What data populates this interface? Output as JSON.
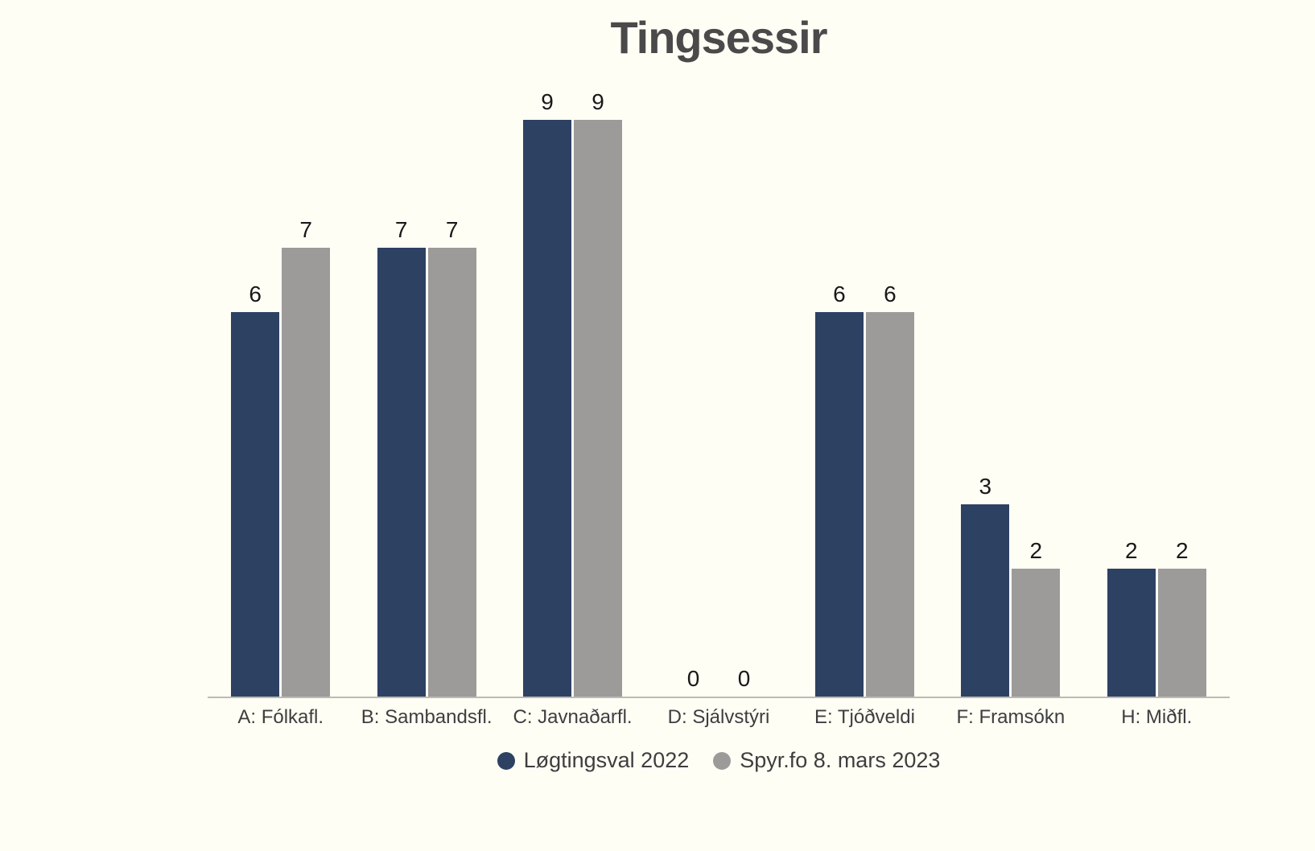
{
  "title": "Tingsessir",
  "chart_data": {
    "type": "bar",
    "title": "Tingsessir",
    "categories": [
      "A: Fólkafl.",
      "B: Sambandsfl.",
      "C: Javnaðarfl.",
      "D: Sjálvstýri",
      "E: Tjóðveldi",
      "F: Framsókn",
      "H: Miðfl."
    ],
    "series": [
      {
        "name": "Løgtingsval 2022",
        "color": "#2d4163",
        "values": [
          6,
          7,
          9,
          0,
          6,
          3,
          2
        ]
      },
      {
        "name": "Spyr.fo 8. mars 2023",
        "color": "#9c9b99",
        "values": [
          7,
          7,
          9,
          0,
          6,
          2,
          2
        ]
      }
    ],
    "xlabel": "",
    "ylabel": "",
    "ylim": [
      0,
      9
    ],
    "grid": false,
    "legend_position": "bottom",
    "value_labels_shown": true
  },
  "colors": {
    "background": "#fffef5",
    "title_text": "#4a4a4a",
    "value_label_text": "#191919",
    "tick_label_text": "#3e3e3e",
    "legend_text": "#3e3e3e",
    "axis_line": "#bcbab5"
  }
}
